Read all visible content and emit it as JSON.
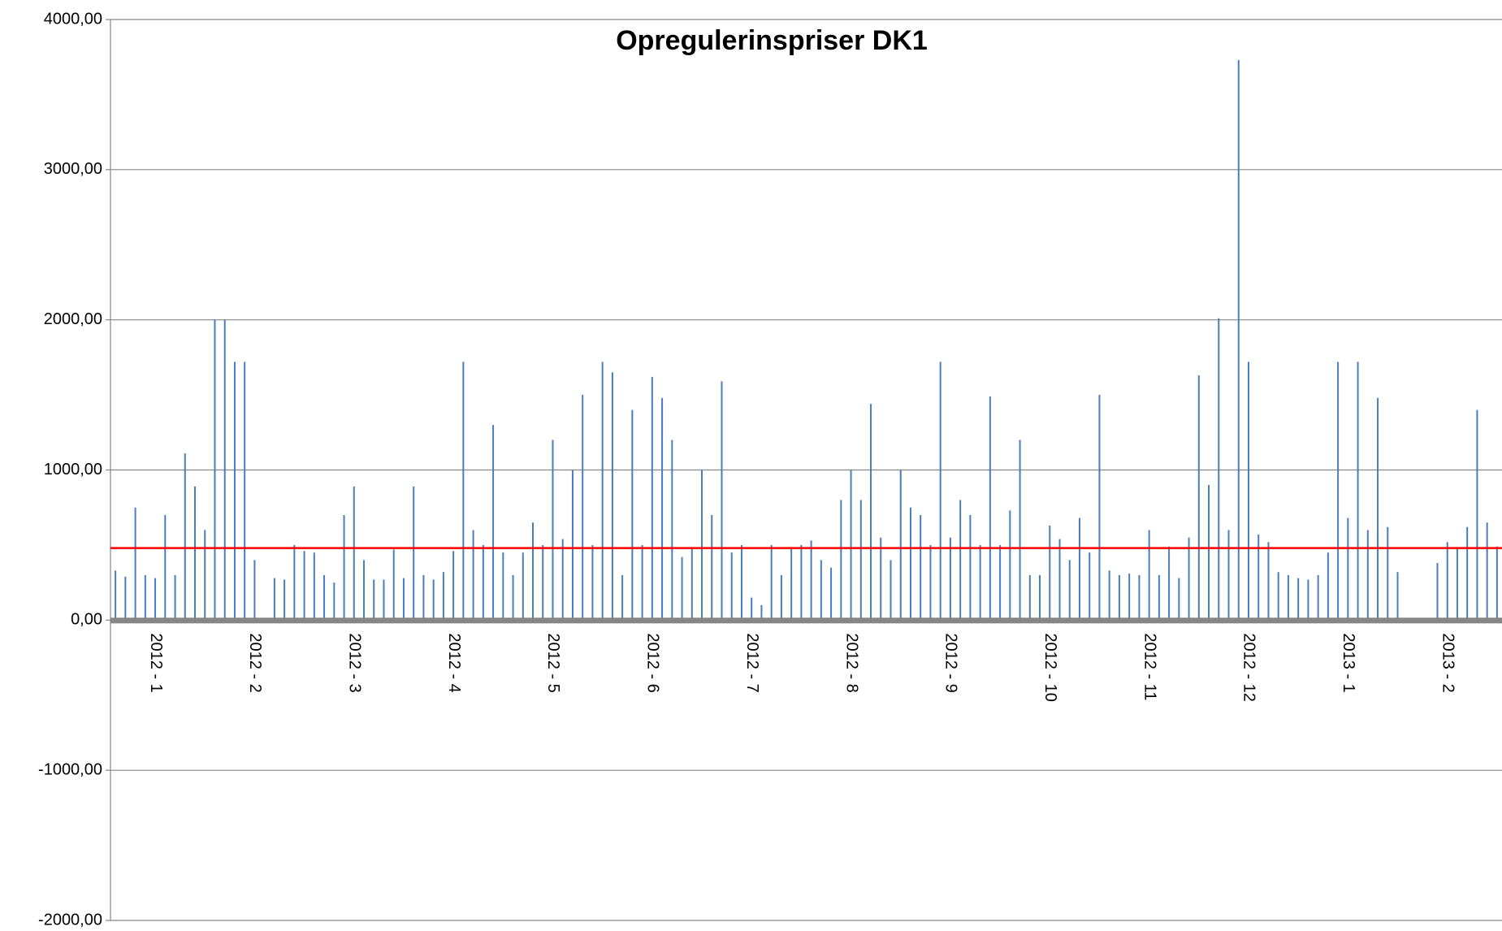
{
  "chart_data": {
    "type": "bar",
    "title": "Opregulerinspriser DK1",
    "categories": [
      null,
      null,
      null,
      null,
      "2012 - 1",
      null,
      null,
      null,
      null,
      null,
      null,
      null,
      null,
      null,
      "2012 - 2",
      null,
      null,
      null,
      null,
      null,
      null,
      null,
      null,
      null,
      "2012 - 3",
      null,
      null,
      null,
      null,
      null,
      null,
      null,
      null,
      null,
      "2012 - 4",
      null,
      null,
      null,
      null,
      null,
      null,
      null,
      null,
      null,
      "2012 - 5",
      null,
      null,
      null,
      null,
      null,
      null,
      null,
      null,
      null,
      "2012 - 6",
      null,
      null,
      null,
      null,
      null,
      null,
      null,
      null,
      null,
      "2012 - 7",
      null,
      null,
      null,
      null,
      null,
      null,
      null,
      null,
      null,
      "2012 - 8",
      null,
      null,
      null,
      null,
      null,
      null,
      null,
      null,
      null,
      "2012 - 9",
      null,
      null,
      null,
      null,
      null,
      null,
      null,
      null,
      null,
      "2012 - 10",
      null,
      null,
      null,
      null,
      null,
      null,
      null,
      null,
      null,
      "2012 - 11",
      null,
      null,
      null,
      null,
      null,
      null,
      null,
      null,
      null,
      "2012 - 12",
      null,
      null,
      null,
      null,
      null,
      null,
      null,
      null,
      null,
      "2013 - 1",
      null,
      null,
      null,
      null,
      null,
      null,
      null,
      null,
      null,
      "2013 - 2",
      null,
      null,
      null,
      null,
      null
    ],
    "values": [
      330,
      290,
      750,
      300,
      280,
      700,
      300,
      1110,
      890,
      600,
      2000,
      2000,
      1720,
      1720,
      400,
      null,
      280,
      270,
      500,
      460,
      450,
      300,
      250,
      700,
      890,
      400,
      270,
      270,
      470,
      280,
      890,
      300,
      270,
      320,
      460,
      1720,
      600,
      500,
      1300,
      450,
      300,
      450,
      650,
      500,
      1200,
      540,
      1000,
      1500,
      500,
      1720,
      1650,
      300,
      1400,
      500,
      1620,
      1480,
      1200,
      420,
      480,
      1000,
      700,
      1590,
      450,
      500,
      150,
      100,
      500,
      300,
      480,
      500,
      530,
      400,
      350,
      800,
      1000,
      800,
      1440,
      550,
      400,
      1000,
      750,
      700,
      500,
      1720,
      550,
      800,
      700,
      500,
      1490,
      500,
      730,
      1200,
      300,
      300,
      630,
      540,
      400,
      680,
      450,
      1500,
      330,
      300,
      310,
      300,
      600,
      300,
      490,
      280,
      550,
      1630,
      900,
      2010,
      600,
      3730,
      1720,
      570,
      520,
      320,
      300,
      280,
      270,
      300,
      450,
      1720,
      680,
      1720,
      600,
      1480,
      620,
      320,
      null,
      null,
      null,
      380,
      520,
      480,
      620,
      1400,
      650,
      490
    ],
    "color": "#4a7ebb",
    "reference_line": {
      "value": 480,
      "color": "#ff0000"
    },
    "ylim": [
      -2000,
      4000
    ],
    "yticks": [
      {
        "value": -2000,
        "label": "-2000,00"
      },
      {
        "value": -1000,
        "label": "-1000,00"
      },
      {
        "value": 0,
        "label": "0,00"
      },
      {
        "value": 1000,
        "label": "1000,00"
      },
      {
        "value": 2000,
        "label": "2000,00"
      },
      {
        "value": 3000,
        "label": "3000,00"
      },
      {
        "value": 4000,
        "label": "4000,00"
      }
    ],
    "grid": true
  }
}
